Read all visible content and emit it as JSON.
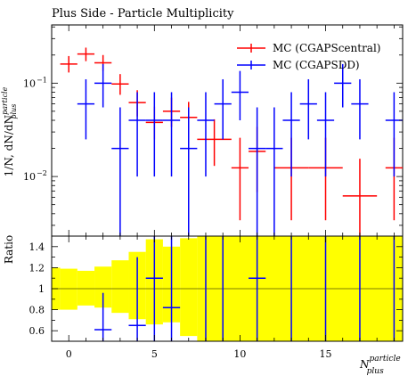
{
  "chart_data": {
    "type": "scatter",
    "title": "Plus Side - Particle Multiplicity",
    "xlabel": "N_plus^particle",
    "xlabel_parts": {
      "base": "N",
      "sup": "particle",
      "sub": "plus"
    },
    "ylabel": "1/N, dN/dN_plus^particle",
    "ylabel_parts": {
      "base": "1/N, dN/dN",
      "sup": "particle",
      "sub": "plus"
    },
    "xlim": [
      -1,
      19.5
    ],
    "ylim": [
      0.0023,
      0.42
    ],
    "yscale": "log",
    "x_ticks": [
      0,
      5,
      10,
      15
    ],
    "y_ticks": [
      {
        "value": 0.1,
        "label": "10",
        "exp": "−1"
      },
      {
        "value": 0.01,
        "label": "10",
        "exp": "−2"
      }
    ],
    "legend_position": "top-right",
    "series": [
      {
        "name": "MC (CGAPScentral)",
        "color": "#ff0000",
        "points": [
          {
            "x": 0,
            "y": 0.16,
            "lo": 0.13,
            "hi": 0.195
          },
          {
            "x": 1,
            "y": 0.205,
            "lo": 0.172,
            "hi": 0.24
          },
          {
            "x": 2,
            "y": 0.165,
            "lo": 0.135,
            "hi": 0.2
          },
          {
            "x": 3,
            "y": 0.098,
            "lo": 0.075,
            "hi": 0.125
          },
          {
            "x": 4,
            "y": 0.062,
            "lo": 0.044,
            "hi": 0.084
          },
          {
            "x": 5,
            "y": 0.038,
            "lo": 0.025,
            "hi": 0.056
          },
          {
            "x": 6,
            "y": 0.05,
            "lo": 0.034,
            "hi": 0.07
          },
          {
            "x": 7,
            "y": 0.043,
            "lo": 0.028,
            "hi": 0.063
          },
          {
            "x": 8.5,
            "y": 0.025,
            "lo": 0.013,
            "hi": 0.041,
            "xerr": 1
          },
          {
            "x": 10,
            "y": 0.0124,
            "lo": 0.0034,
            "hi": 0.026
          },
          {
            "x": 11,
            "y": 0.0186,
            "lo": 0.0068,
            "hi": 0.034
          },
          {
            "x": 13,
            "y": 0.0124,
            "lo": 0.0034,
            "hi": 0.026,
            "xerr": 1
          },
          {
            "x": 15,
            "y": 0.0124,
            "lo": 0.0034,
            "hi": 0.026,
            "xerr": 1
          },
          {
            "x": 17,
            "y": 0.0062,
            "lo": 0.0023,
            "hi": 0.0155,
            "xerr": 1
          },
          {
            "x": 19,
            "y": 0.0124,
            "lo": 0.0034,
            "hi": 0.026,
            "xerr": 0.5
          }
        ]
      },
      {
        "name": "MC (CGAPSDD)",
        "color": "#0000ff",
        "points": [
          {
            "x": 1,
            "y": 0.06,
            "lo": 0.025,
            "hi": 0.11
          },
          {
            "x": 2,
            "y": 0.1,
            "lo": 0.055,
            "hi": 0.16
          },
          {
            "x": 3,
            "y": 0.02,
            "lo": 0.0023,
            "hi": 0.055
          },
          {
            "x": 4,
            "y": 0.04,
            "lo": 0.01,
            "hi": 0.08
          },
          {
            "x": 5,
            "y": 0.04,
            "lo": 0.01,
            "hi": 0.08
          },
          {
            "x": 6,
            "y": 0.04,
            "lo": 0.01,
            "hi": 0.08
          },
          {
            "x": 7,
            "y": 0.02,
            "lo": 0.0023,
            "hi": 0.055
          },
          {
            "x": 8,
            "y": 0.04,
            "lo": 0.01,
            "hi": 0.08
          },
          {
            "x": 9,
            "y": 0.06,
            "lo": 0.025,
            "hi": 0.11
          },
          {
            "x": 10,
            "y": 0.08,
            "lo": 0.04,
            "hi": 0.135
          },
          {
            "x": 11,
            "y": 0.02,
            "lo": 0.0023,
            "hi": 0.055
          },
          {
            "x": 12,
            "y": 0.02,
            "lo": 0.0023,
            "hi": 0.055
          },
          {
            "x": 13,
            "y": 0.04,
            "lo": 0.01,
            "hi": 0.08
          },
          {
            "x": 14,
            "y": 0.06,
            "lo": 0.025,
            "hi": 0.11
          },
          {
            "x": 15,
            "y": 0.04,
            "lo": 0.01,
            "hi": 0.08
          },
          {
            "x": 16,
            "y": 0.1,
            "lo": 0.055,
            "hi": 0.16
          },
          {
            "x": 17,
            "y": 0.06,
            "lo": 0.025,
            "hi": 0.11
          },
          {
            "x": 19,
            "y": 0.04,
            "lo": 0.01,
            "hi": 0.08
          }
        ]
      }
    ],
    "ratio_panel": {
      "ylabel": "Ratio",
      "ylim": [
        0.5,
        1.5
      ],
      "y_ticks": [
        0.6,
        0.8,
        1,
        1.2,
        1.4
      ],
      "y_tick_labels": [
        "0.6",
        "0.8",
        "1",
        "1.2",
        "1.4"
      ],
      "band_color": "#ffff00",
      "band": [
        {
          "x0": -1,
          "x1": -0.5,
          "lo": 0.8,
          "hi": 1.2
        },
        {
          "x0": -0.5,
          "x1": 0.5,
          "lo": 0.8,
          "hi": 1.19
        },
        {
          "x0": 0.5,
          "x1": 1.5,
          "lo": 0.84,
          "hi": 1.17
        },
        {
          "x0": 1.5,
          "x1": 2.5,
          "lo": 0.82,
          "hi": 1.21
        },
        {
          "x0": 2.5,
          "x1": 3.5,
          "lo": 0.77,
          "hi": 1.27
        },
        {
          "x0": 3.5,
          "x1": 4.5,
          "lo": 0.71,
          "hi": 1.35
        },
        {
          "x0": 4.5,
          "x1": 5.5,
          "lo": 0.66,
          "hi": 1.47
        },
        {
          "x0": 5.5,
          "x1": 6.5,
          "lo": 0.68,
          "hi": 1.4
        },
        {
          "x0": 6.5,
          "x1": 7.5,
          "lo": 0.55,
          "hi": 1.48
        },
        {
          "x0": 7.5,
          "x1": 19.5,
          "lo": 0.5,
          "hi": 1.5
        }
      ],
      "points": [
        {
          "x": 2,
          "y": 0.61,
          "lo": 0.5,
          "hi": 0.96
        },
        {
          "x": 4,
          "y": 0.65,
          "lo": 0.5,
          "hi": 1.3
        },
        {
          "x": 5,
          "y": 1.1,
          "lo": 0.5,
          "hi": 1.5
        },
        {
          "x": 6,
          "y": 0.82,
          "lo": 0.5,
          "hi": 1.5
        },
        {
          "x": 8,
          "y": 1.5,
          "lo": 0.5,
          "hi": 1.5
        },
        {
          "x": 9,
          "y": 1.5,
          "lo": 0.5,
          "hi": 1.5
        },
        {
          "x": 11,
          "y": 1.1,
          "lo": 0.5,
          "hi": 1.5
        },
        {
          "x": 13,
          "y": 1.5,
          "lo": 0.5,
          "hi": 1.5
        },
        {
          "x": 15,
          "y": 1.5,
          "lo": 0.5,
          "hi": 1.5
        },
        {
          "x": 17,
          "y": 1.5,
          "lo": 0.5,
          "hi": 1.5
        },
        {
          "x": 19,
          "y": 1.5,
          "lo": 0.5,
          "hi": 1.5
        }
      ]
    }
  }
}
